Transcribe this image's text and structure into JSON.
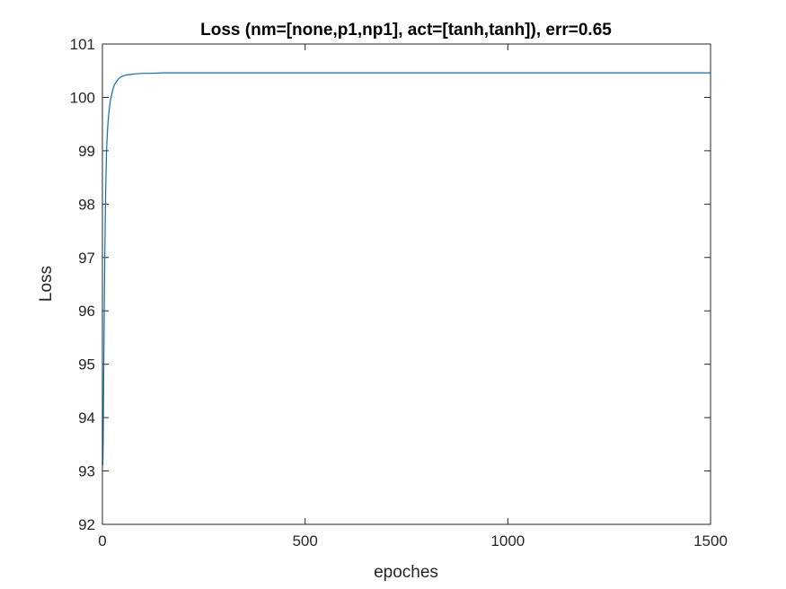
{
  "chart_data": {
    "type": "line",
    "title": "Loss (nm=[none,p1,np1], act=[tanh,tanh]), err=0.65",
    "xlabel": "epoches",
    "ylabel": "Loss",
    "xlim": [
      0,
      1500
    ],
    "ylim": [
      92,
      101
    ],
    "xticks": [
      0,
      500,
      1000,
      1500
    ],
    "yticks": [
      92,
      93,
      94,
      95,
      96,
      97,
      98,
      99,
      100,
      101
    ],
    "grid": false,
    "legend": "none",
    "series": [
      {
        "color": "#0072bd",
        "x": [
          1,
          2,
          3,
          4,
          5,
          6,
          7,
          8,
          9,
          10,
          12,
          14,
          16,
          18,
          20,
          22,
          25,
          28,
          30,
          35,
          40,
          45,
          50,
          60,
          70,
          80,
          100,
          120,
          150,
          200,
          250,
          300,
          400,
          500,
          700,
          1000,
          1250,
          1500
        ],
        "y": [
          93.1,
          93.6,
          94.6,
          95.5,
          96.4,
          97.1,
          97.7,
          98.2,
          98.6,
          98.95,
          99.3,
          99.55,
          99.72,
          99.85,
          99.95,
          100.02,
          100.12,
          100.2,
          100.24,
          100.3,
          100.35,
          100.38,
          100.4,
          100.42,
          100.43,
          100.44,
          100.45,
          100.45,
          100.46,
          100.46,
          100.46,
          100.46,
          100.46,
          100.46,
          100.46,
          100.46,
          100.46,
          100.46
        ]
      }
    ]
  }
}
